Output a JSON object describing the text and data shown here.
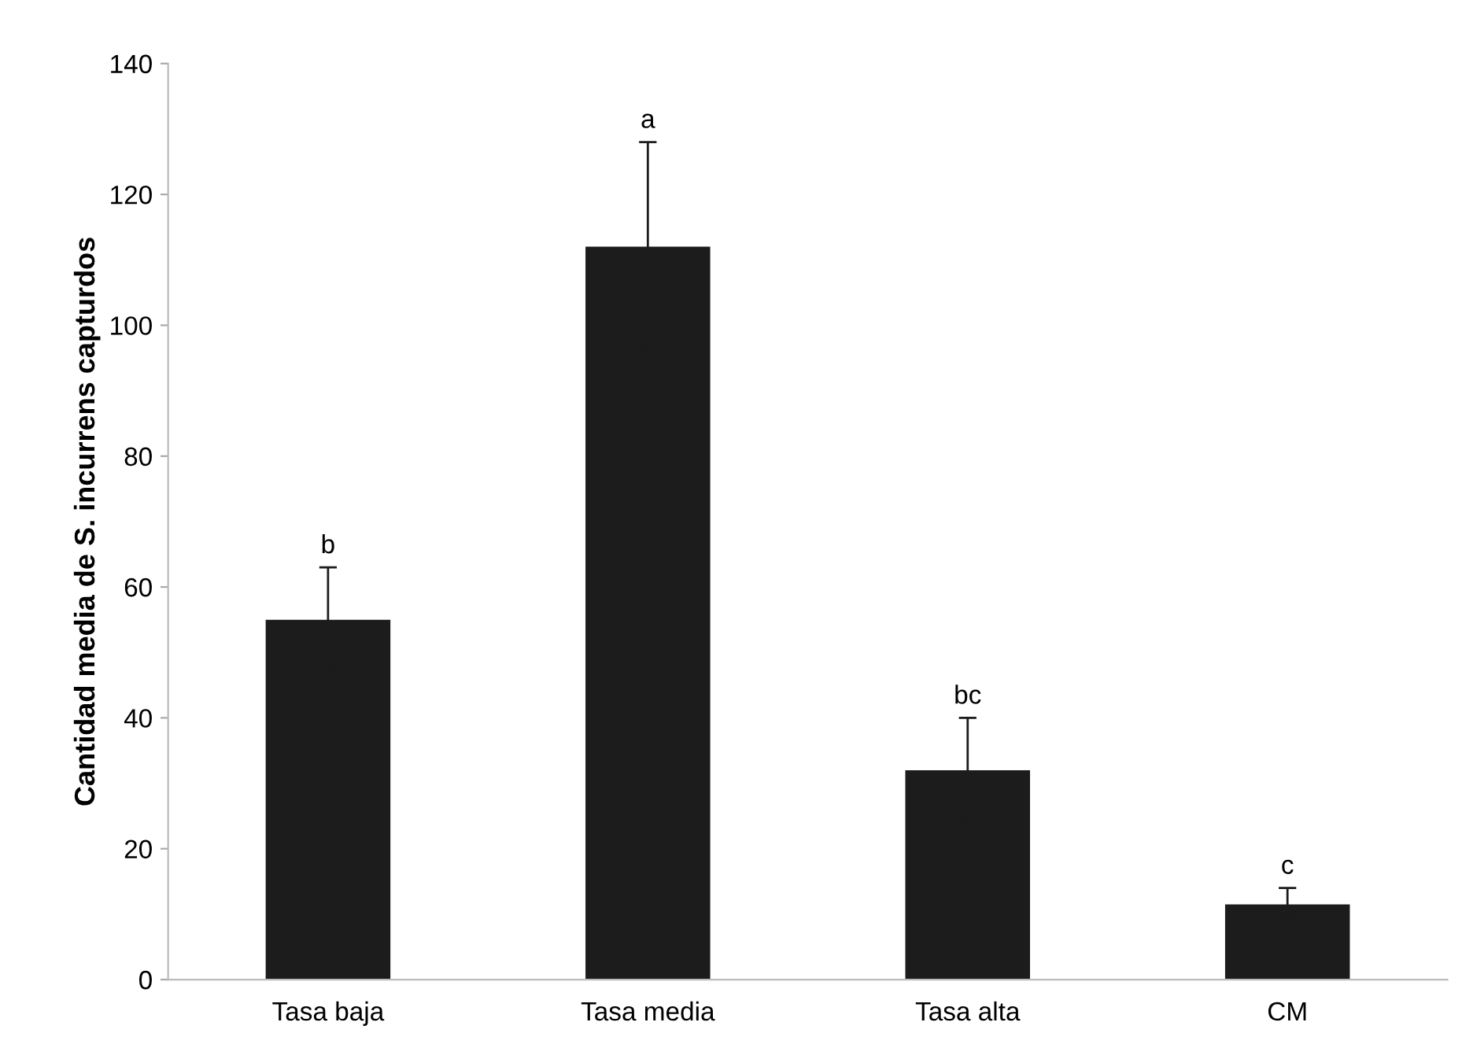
{
  "chart_data": {
    "type": "bar",
    "ylabel": "Cantidad media de S. incurrens capturdos",
    "categories": [
      "Tasa baja",
      "Tasa media",
      "Tasa alta",
      "CM"
    ],
    "values": [
      55,
      112,
      32,
      11.5
    ],
    "errors": [
      8,
      16,
      8,
      2.5
    ],
    "color": "#1c1c1c",
    "ylim": [
      0,
      140
    ],
    "yticks": [
      0,
      20,
      40,
      60,
      80,
      100,
      120,
      140
    ],
    "grid": false,
    "legend": false,
    "annotations": [
      {
        "text": "b",
        "x": "Tasa baja",
        "y": 63
      },
      {
        "text": "a",
        "x": "Tasa media",
        "y": 128
      },
      {
        "text": "bc",
        "x": "Tasa alta",
        "y": 40
      },
      {
        "text": "c",
        "x": "CM",
        "y": 14
      }
    ]
  }
}
